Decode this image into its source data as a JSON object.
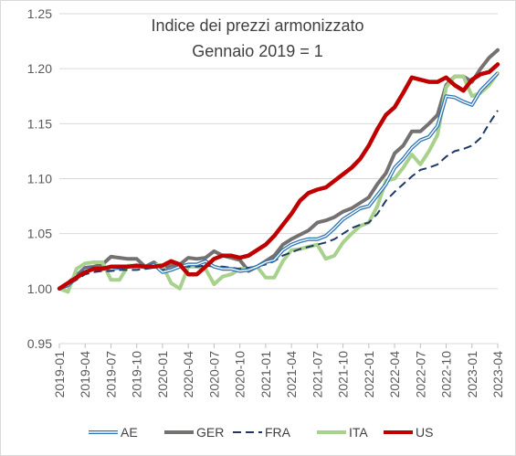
{
  "chart_data": {
    "type": "line",
    "title": "Indice dei prezzi armonizzato",
    "subtitle": "Gennaio 2019 = 1",
    "xlabel": "",
    "ylabel": "",
    "ylim": [
      0.95,
      1.25
    ],
    "yticks": [
      "0.95",
      "1.00",
      "1.05",
      "1.10",
      "1.15",
      "1.20",
      "1.25"
    ],
    "ytick_values": [
      0.95,
      1.0,
      1.05,
      1.1,
      1.15,
      1.2,
      1.25
    ],
    "grid": "horizontal",
    "legend_position": "bottom",
    "x": [
      "2019-01",
      "2019-02",
      "2019-03",
      "2019-04",
      "2019-05",
      "2019-06",
      "2019-07",
      "2019-08",
      "2019-09",
      "2019-10",
      "2019-11",
      "2019-12",
      "2020-01",
      "2020-02",
      "2020-03",
      "2020-04",
      "2020-05",
      "2020-06",
      "2020-07",
      "2020-08",
      "2020-09",
      "2020-10",
      "2020-11",
      "2020-12",
      "2021-01",
      "2021-02",
      "2021-03",
      "2021-04",
      "2021-05",
      "2021-06",
      "2021-07",
      "2021-08",
      "2021-09",
      "2021-10",
      "2021-11",
      "2021-12",
      "2022-01",
      "2022-02",
      "2022-03",
      "2022-04",
      "2022-05",
      "2022-06",
      "2022-07",
      "2022-08",
      "2022-09",
      "2022-10",
      "2022-11",
      "2022-12",
      "2023-01",
      "2023-02",
      "2023-03",
      "2023-04"
    ],
    "xtick_labels": [
      "2019-01",
      "2019-04",
      "2019-07",
      "2019-10",
      "2020-01",
      "2020-04",
      "2020-07",
      "2020-10",
      "2021-01",
      "2021-04",
      "2021-07",
      "2021-10",
      "2022-01",
      "2022-04",
      "2022-07",
      "2022-10",
      "2023-01",
      "2023-04"
    ],
    "series": [
      {
        "name": "AE",
        "color": "#2e75b6",
        "style": "double",
        "values": [
          1.0,
          1.003,
          1.01,
          1.017,
          1.019,
          1.019,
          1.018,
          1.019,
          1.02,
          1.02,
          1.02,
          1.022,
          1.015,
          1.017,
          1.02,
          1.022,
          1.022,
          1.025,
          1.02,
          1.018,
          1.018,
          1.016,
          1.017,
          1.02,
          1.024,
          1.026,
          1.035,
          1.04,
          1.043,
          1.045,
          1.045,
          1.048,
          1.055,
          1.063,
          1.068,
          1.073,
          1.075,
          1.085,
          1.095,
          1.11,
          1.118,
          1.128,
          1.135,
          1.138,
          1.148,
          1.175,
          1.174,
          1.17,
          1.167,
          1.18,
          1.188,
          1.196
        ]
      },
      {
        "name": "GER",
        "color": "#767171",
        "style": "solid",
        "values": [
          1.0,
          1.005,
          1.012,
          1.019,
          1.02,
          1.022,
          1.029,
          1.028,
          1.027,
          1.027,
          1.02,
          1.024,
          1.018,
          1.021,
          1.022,
          1.028,
          1.027,
          1.028,
          1.034,
          1.03,
          1.028,
          1.026,
          1.016,
          1.02,
          1.025,
          1.03,
          1.04,
          1.045,
          1.049,
          1.053,
          1.06,
          1.062,
          1.065,
          1.07,
          1.073,
          1.078,
          1.083,
          1.095,
          1.105,
          1.123,
          1.13,
          1.143,
          1.143,
          1.15,
          1.158,
          1.185,
          1.193,
          1.193,
          1.188,
          1.2,
          1.21,
          1.217
        ]
      },
      {
        "name": "FRA",
        "color": "#1f3864",
        "style": "dashed",
        "values": [
          1.0,
          1.003,
          1.008,
          1.013,
          1.015,
          1.016,
          1.016,
          1.017,
          1.017,
          1.017,
          1.018,
          1.019,
          1.017,
          1.018,
          1.02,
          1.02,
          1.02,
          1.021,
          1.02,
          1.02,
          1.019,
          1.018,
          1.019,
          1.02,
          1.022,
          1.025,
          1.03,
          1.033,
          1.036,
          1.038,
          1.04,
          1.042,
          1.045,
          1.05,
          1.055,
          1.058,
          1.06,
          1.068,
          1.08,
          1.088,
          1.095,
          1.102,
          1.108,
          1.11,
          1.113,
          1.12,
          1.125,
          1.127,
          1.13,
          1.137,
          1.15,
          1.162
        ]
      },
      {
        "name": "ITA",
        "color": "#a9d18e",
        "style": "solid",
        "values": [
          1.0,
          0.997,
          1.018,
          1.023,
          1.024,
          1.024,
          1.008,
          1.008,
          1.021,
          1.021,
          1.019,
          1.022,
          1.021,
          1.005,
          1.0,
          1.02,
          1.02,
          1.018,
          1.004,
          1.011,
          1.013,
          1.018,
          1.018,
          1.02,
          1.01,
          1.01,
          1.025,
          1.035,
          1.036,
          1.038,
          1.04,
          1.027,
          1.03,
          1.042,
          1.05,
          1.057,
          1.06,
          1.075,
          1.098,
          1.1,
          1.11,
          1.122,
          1.113,
          1.125,
          1.14,
          1.183,
          1.193,
          1.193,
          1.175,
          1.178,
          1.185,
          1.196
        ]
      },
      {
        "name": "US",
        "color": "#c00000",
        "style": "solid",
        "values": [
          1.0,
          1.005,
          1.01,
          1.015,
          1.018,
          1.018,
          1.02,
          1.02,
          1.02,
          1.021,
          1.02,
          1.02,
          1.021,
          1.025,
          1.022,
          1.013,
          1.013,
          1.02,
          1.027,
          1.03,
          1.03,
          1.028,
          1.03,
          1.035,
          1.04,
          1.048,
          1.058,
          1.068,
          1.08,
          1.087,
          1.09,
          1.092,
          1.098,
          1.104,
          1.11,
          1.118,
          1.13,
          1.145,
          1.158,
          1.165,
          1.178,
          1.192,
          1.19,
          1.188,
          1.188,
          1.192,
          1.185,
          1.18,
          1.19,
          1.195,
          1.197,
          1.204
        ]
      }
    ]
  }
}
